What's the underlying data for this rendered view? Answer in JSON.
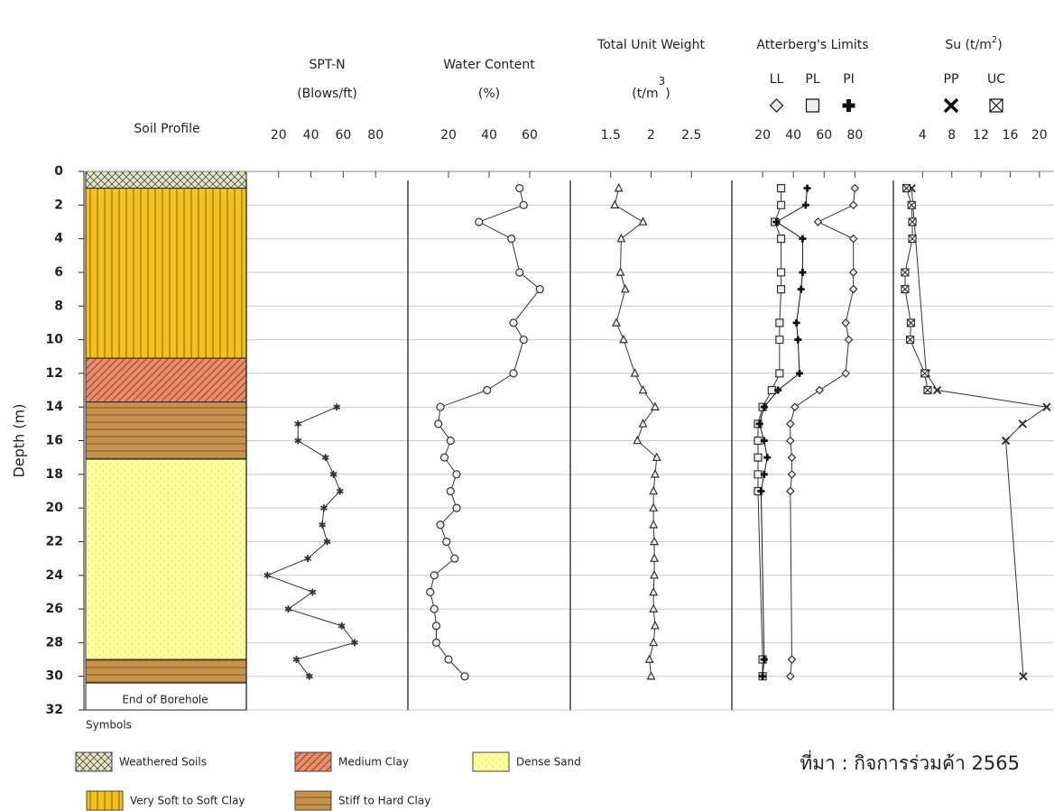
{
  "footer": {
    "source": "ที่มา : กิจการร่วมค้า 2565"
  },
  "chart_data": [
    {
      "type": "profile",
      "title": "Soil Profile",
      "ylabel": "Depth (m)",
      "ylim": [
        0,
        32
      ],
      "yticks": [
        0,
        2,
        4,
        6,
        8,
        10,
        12,
        14,
        16,
        18,
        20,
        22,
        24,
        26,
        28,
        30,
        32
      ],
      "grid": true,
      "legend_title": "Symbols",
      "soils": [
        {
          "name": "Weathered Soils",
          "color": "#dfe6cf",
          "pattern": "crosshatch"
        },
        {
          "name": "Very Soft to Soft Clay",
          "color": "#f5c21b",
          "pattern": "vertical"
        },
        {
          "name": "Medium Clay",
          "color": "#f08a68",
          "pattern": "diagonal"
        },
        {
          "name": "Stiff to Hard Clay",
          "color": "#c8924a",
          "pattern": "horizontal"
        },
        {
          "name": "Dense Sand",
          "color": "#ffff9e",
          "pattern": "dots"
        }
      ],
      "layers": [
        {
          "soil": 0,
          "top": 0,
          "bottom": 1
        },
        {
          "soil": 1,
          "top": 1,
          "bottom": 11.1
        },
        {
          "soil": 2,
          "top": 11.1,
          "bottom": 13.7
        },
        {
          "soil": 3,
          "top": 13.7,
          "bottom": 17.1
        },
        {
          "soil": 4,
          "top": 17.1,
          "bottom": 29
        },
        {
          "soil": 3,
          "top": 29,
          "bottom": 30.4
        }
      ],
      "end_label": "End of Borehole",
      "end_top": 30.4
    },
    {
      "type": "line",
      "title": "SPT-N",
      "subtitle": "(Blows/ft)",
      "xlim": [
        0,
        100
      ],
      "xticks": [
        20,
        40,
        60,
        80
      ],
      "series": [
        {
          "marker": "star",
          "color": "#333",
          "x": [
            56,
            32,
            32,
            49,
            54,
            58,
            48,
            47,
            50,
            38,
            13,
            41,
            26,
            59,
            67,
            31,
            39
          ],
          "y": [
            14,
            15,
            16,
            17,
            18,
            19,
            20,
            21,
            22,
            23,
            24,
            25,
            26,
            27,
            28,
            29,
            30
          ]
        }
      ]
    },
    {
      "type": "line",
      "title": "Water Content",
      "subtitle": "(%)",
      "xlim": [
        0,
        80
      ],
      "xticks": [
        20,
        40,
        60
      ],
      "series": [
        {
          "marker": "circle",
          "color": "#333",
          "x": [
            55,
            57,
            35,
            51,
            55,
            65,
            52,
            57,
            52,
            39,
            16,
            15,
            21,
            18,
            24,
            21,
            24,
            16,
            19,
            23,
            13,
            11,
            13,
            14,
            14,
            20,
            28
          ],
          "y": [
            1,
            2,
            3,
            4,
            6,
            7,
            9,
            10,
            12,
            13,
            14,
            15,
            16,
            17,
            18,
            19,
            20,
            21,
            22,
            23,
            24,
            25,
            26,
            27,
            28,
            29,
            30
          ]
        }
      ]
    },
    {
      "type": "line",
      "title": "Total Unit Weight",
      "subtitle": "(t/m",
      "subtitle_sup": "3",
      "subtitle_end": ")",
      "xlim": [
        1,
        3
      ],
      "xticks": [
        1.5,
        2,
        2.5
      ],
      "series": [
        {
          "marker": "triangle",
          "color": "#333",
          "x": [
            1.6,
            1.55,
            1.9,
            1.63,
            1.62,
            1.68,
            1.57,
            1.66,
            1.8,
            1.9,
            2.05,
            1.9,
            1.83,
            2.07,
            2.05,
            2.03,
            2.03,
            2.03,
            2.04,
            2.04,
            2.04,
            2.03,
            2.03,
            2.05,
            2.03,
            1.98,
            2
          ],
          "y": [
            1,
            2,
            3,
            4,
            6,
            7,
            9,
            10,
            12,
            13,
            14,
            15,
            16,
            17,
            18,
            19,
            20,
            21,
            22,
            23,
            24,
            25,
            26,
            27,
            28,
            29,
            30
          ]
        }
      ]
    },
    {
      "type": "line",
      "title": "Atterberg's Limits",
      "xlim": [
        0,
        105
      ],
      "xticks": [
        20,
        40,
        60,
        80
      ],
      "series": [
        {
          "name": "LL",
          "marker": "diamond",
          "color": "#333",
          "x": [
            80,
            79,
            56,
            79,
            79,
            79,
            74,
            76,
            74,
            57,
            41,
            38,
            38,
            39,
            39,
            38,
            39,
            38
          ],
          "y": [
            1,
            2,
            3,
            4,
            6,
            7,
            9,
            10,
            12,
            13,
            14,
            15,
            16,
            17,
            18,
            19,
            29,
            30
          ]
        },
        {
          "name": "PL",
          "marker": "square",
          "color": "#333",
          "x": [
            32,
            32,
            28,
            32,
            32,
            32,
            31,
            31,
            31,
            26,
            20,
            17,
            17,
            17,
            17,
            17,
            20,
            20
          ],
          "y": [
            1,
            2,
            3,
            4,
            6,
            7,
            9,
            10,
            12,
            13,
            14,
            15,
            16,
            17,
            18,
            19,
            29,
            30
          ]
        },
        {
          "name": "PI",
          "marker": "plus",
          "color": "#111",
          "x": [
            49,
            48,
            29,
            46,
            46,
            45,
            42,
            43,
            44,
            30,
            21,
            18,
            21,
            23,
            21,
            19,
            21,
            20
          ],
          "y": [
            1,
            2,
            3,
            4,
            6,
            7,
            9,
            10,
            12,
            13,
            14,
            15,
            16,
            17,
            18,
            19,
            29,
            30
          ]
        }
      ]
    },
    {
      "type": "line",
      "title": "Su (t/m",
      "title_sup": "2",
      "title_end": ")",
      "xlim": [
        0,
        22
      ],
      "xticks": [
        4,
        8,
        12,
        16,
        20
      ],
      "series": [
        {
          "name": "PP",
          "marker": "x",
          "color": "#333",
          "x": [
            2.5,
            4.5,
            6,
            21,
            17.7,
            15.4,
            17.8
          ],
          "y": [
            1,
            12,
            13,
            14,
            15,
            16,
            30
          ]
        },
        {
          "name": "UC",
          "marker": "boxx",
          "color": "#333",
          "x": [
            1.8,
            2.5,
            2.6,
            2.6,
            1.6,
            1.6,
            2.4,
            2.3,
            4.3,
            4.7
          ],
          "y": [
            1,
            2,
            3,
            4,
            6,
            7,
            9,
            10,
            12,
            13
          ]
        }
      ]
    }
  ]
}
